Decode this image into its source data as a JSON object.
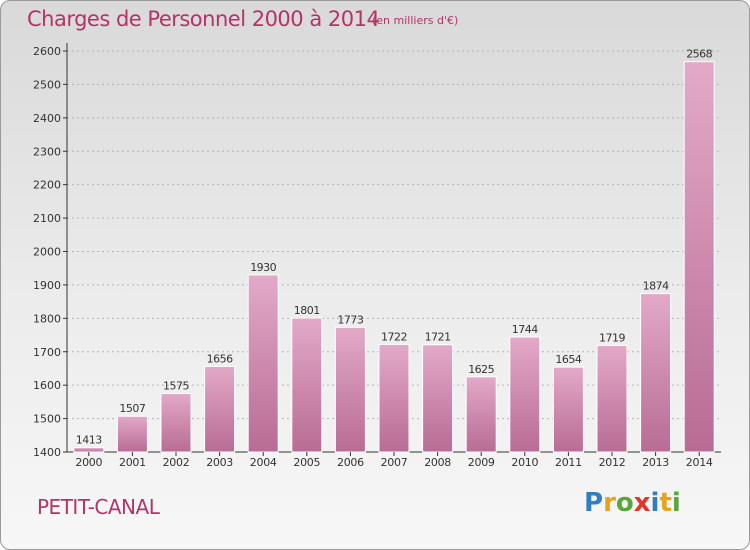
{
  "title": "Charges de Personnel 2000 à 2014",
  "subtitle": "(en milliers d'€)",
  "place_name": "PETIT-CANAL",
  "logo": {
    "letters": [
      "P",
      "r",
      "o",
      "x",
      "i",
      "t",
      "i"
    ],
    "colors": [
      "#2d7fc1",
      "#e8a21c",
      "#5aa63c",
      "#e2352b",
      "#2d7fc1",
      "#e8a21c",
      "#5aa63c"
    ]
  },
  "colors": {
    "bar_light": "#e3a9c8",
    "bar_dark": "#b86c94",
    "text": "#b3336b",
    "axis": "#333333",
    "grid": "#b5b5b5"
  },
  "chart_data": {
    "type": "bar",
    "title": "Charges de Personnel 2000 à 2014",
    "subtitle": "(en milliers d'€)",
    "categories": [
      "2000",
      "2001",
      "2002",
      "2003",
      "2004",
      "2005",
      "2006",
      "2007",
      "2008",
      "2009",
      "2010",
      "2011",
      "2012",
      "2013",
      "2014"
    ],
    "values": [
      1413,
      1507,
      1575,
      1656,
      1930,
      1801,
      1773,
      1722,
      1721,
      1625,
      1744,
      1654,
      1719,
      1874,
      2568
    ],
    "data_labels": [
      "1413",
      "1507",
      "1575",
      "1656",
      "1930",
      "1801",
      "1773",
      "1722",
      "1721",
      "1625",
      "1744",
      "1654",
      "1719",
      "1874",
      "2568"
    ],
    "yticks": [
      "1400",
      "1500",
      "1600",
      "1700",
      "1800",
      "1900",
      "2000",
      "2100",
      "2200",
      "2300",
      "2400",
      "2500",
      "2600"
    ],
    "ylim": [
      1400,
      2600
    ],
    "grid": true,
    "xlabel": "",
    "ylabel": ""
  }
}
